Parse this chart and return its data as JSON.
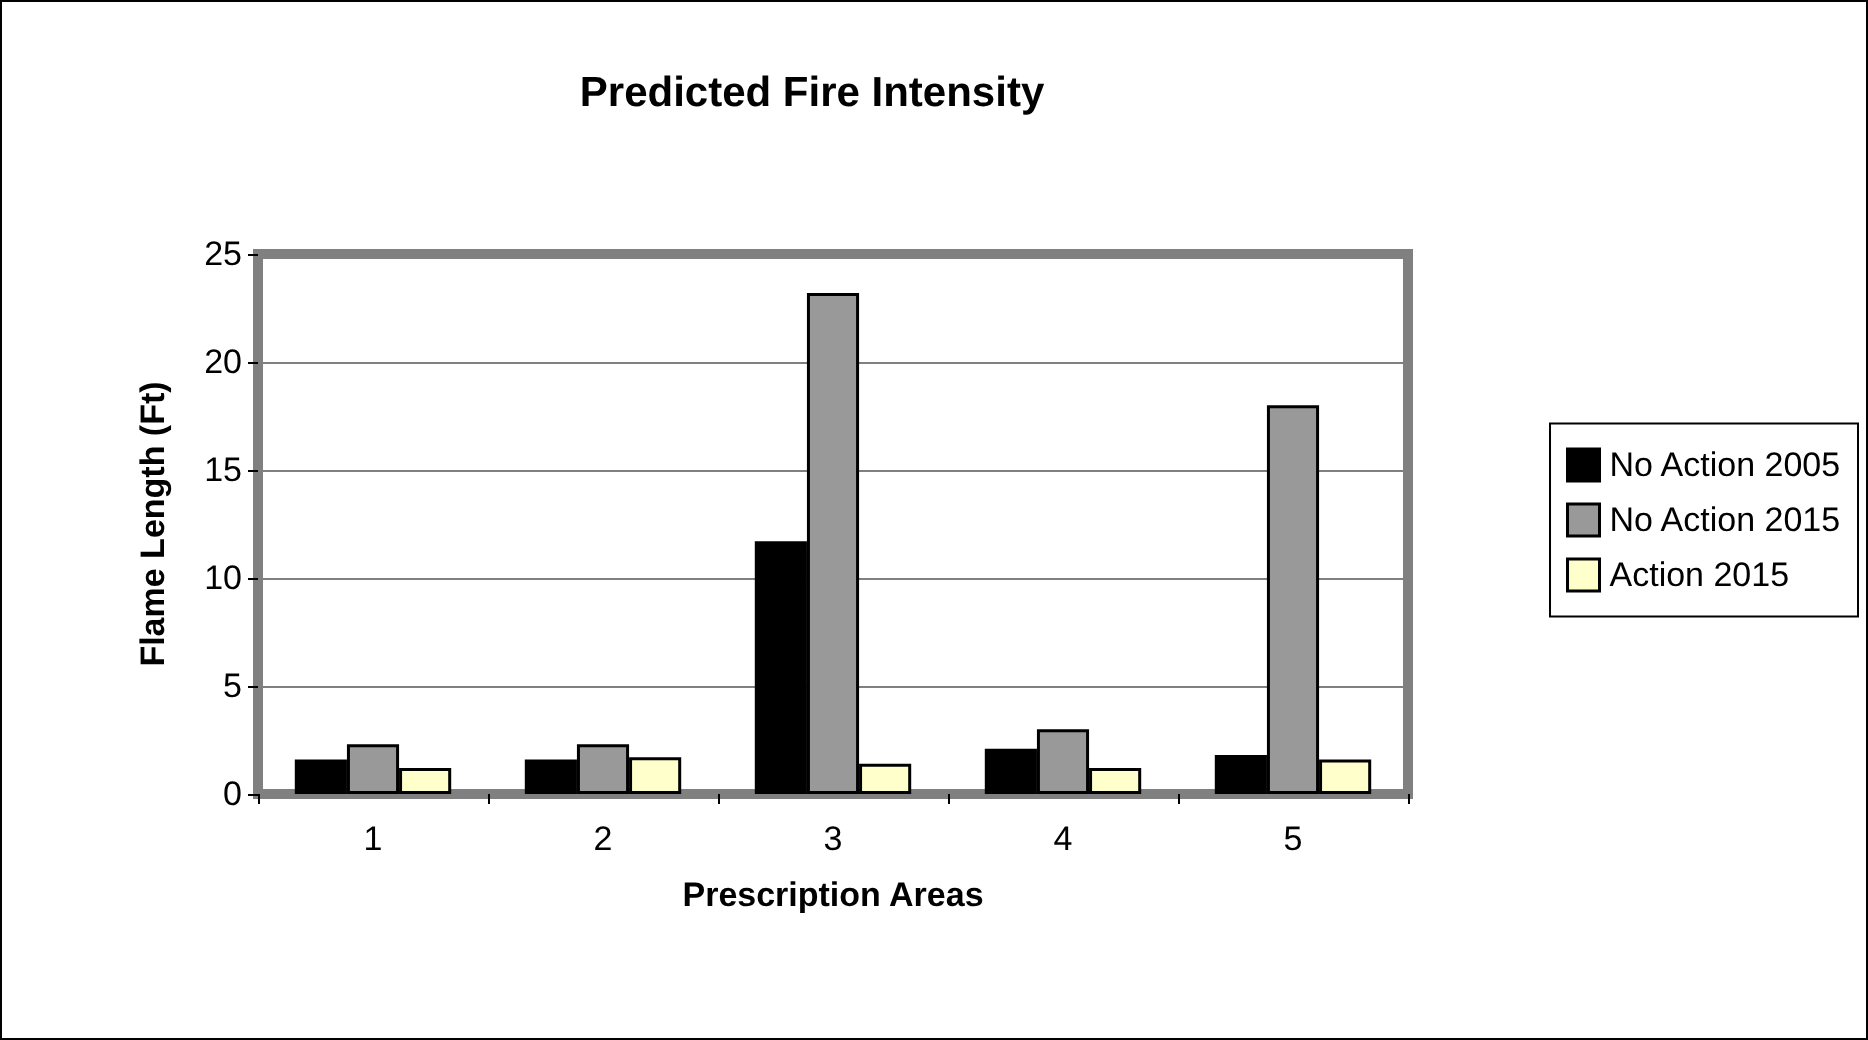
{
  "chart_data": {
    "type": "bar",
    "title": "Predicted Fire Intensity",
    "xlabel": "Prescription Areas",
    "ylabel": "Flame Length (Ft)",
    "categories": [
      "1",
      "2",
      "3",
      "4",
      "5"
    ],
    "series": [
      {
        "name": "No Action 2005",
        "color": "#000000",
        "values": [
          1.6,
          1.6,
          11.7,
          2.1,
          1.8
        ]
      },
      {
        "name": "No Action 2015",
        "color": "#999999",
        "values": [
          2.3,
          2.3,
          23.2,
          3.0,
          18.0
        ]
      },
      {
        "name": "Action 2015",
        "color": "#ffffcc",
        "values": [
          1.2,
          1.7,
          1.4,
          1.2,
          1.6
        ]
      }
    ],
    "ylim": [
      0,
      25
    ],
    "yticks": [
      0,
      5,
      10,
      15,
      20,
      25
    ],
    "grid": "y",
    "legend": "right"
  }
}
